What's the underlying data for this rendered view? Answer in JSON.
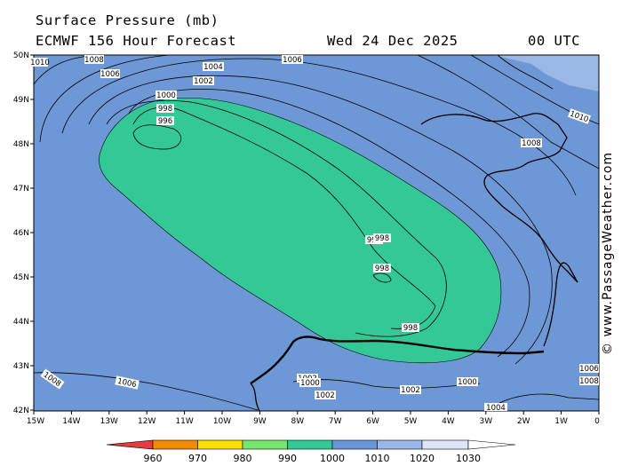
{
  "header": {
    "title": "Surface Pressure (mb)",
    "model": "ECMWF 156 Hour Forecast",
    "date": "Wed 24 Dec 2025",
    "time": "00 UTC"
  },
  "credit": "© www.PassageWeather.com",
  "axes": {
    "lat_labels": [
      "50N",
      "49N",
      "48N",
      "47N",
      "46N",
      "45N",
      "44N",
      "43N",
      "42N"
    ],
    "lon_labels": [
      "15W",
      "14W",
      "13W",
      "12W",
      "11W",
      "10W",
      "9W",
      "8W",
      "7W",
      "6W",
      "5W",
      "4W",
      "3W",
      "2W",
      "1W",
      "0"
    ]
  },
  "isobar_labels": [
    "1010",
    "1008",
    "1006",
    "1006",
    "1004",
    "1002",
    "1000",
    "998",
    "996",
    "998",
    "998",
    "998",
    "998",
    "1002",
    "1000",
    "1002",
    "1000",
    "1002",
    "1006",
    "1008",
    "1010",
    "1008",
    "1006",
    "1008",
    "1004"
  ],
  "colorbar": {
    "labels": [
      "960",
      "970",
      "980",
      "990",
      "1000",
      "1010",
      "1020",
      "1030"
    ],
    "colors": [
      "#e83c3c",
      "#f08c00",
      "#f8e000",
      "#78e66e",
      "#34c896",
      "#6a96d8",
      "#9ab8e6",
      "#dce6f8"
    ]
  },
  "colors": {
    "ocean": "#6e97d6",
    "low_zone": "#34c896",
    "high_zone": "#9ab8e6"
  }
}
